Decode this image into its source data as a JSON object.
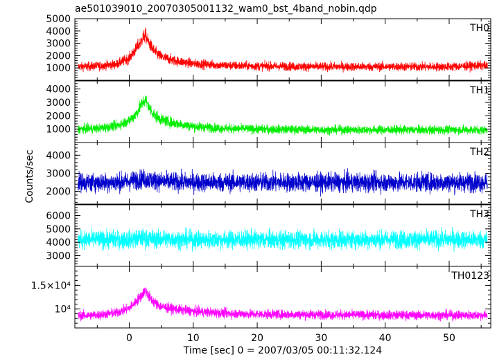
{
  "chart_data": {
    "type": "line",
    "title": "ae501039010_20070305001132_wam0_bst_4band_nobin.qdp",
    "xlabel": "Time [sec] 0 = 2007/03/05 00:11:32.124",
    "ylabel": "Counts/sec",
    "xlim": [
      -8.5,
      56.5
    ],
    "x_ticks": [
      0,
      10,
      20,
      30,
      40,
      50
    ],
    "x_tick_labels": [
      "0",
      "10",
      "20",
      "30",
      "40",
      "50"
    ],
    "grid": false,
    "panels": [
      {
        "name": "TH0",
        "color": "#ff0000",
        "ylim": [
          0,
          5000
        ],
        "y_ticks": [
          1000,
          2000,
          3000,
          4000,
          5000
        ],
        "y_tick_labels": [
          "1000",
          "2000",
          "3000",
          "4000",
          "5000"
        ],
        "points": [
          [
            -8,
            1100
          ],
          [
            -5,
            1150
          ],
          [
            -2,
            1300
          ],
          [
            0,
            1800
          ],
          [
            1,
            2500
          ],
          [
            2,
            3300
          ],
          [
            2.5,
            3700
          ],
          [
            3,
            3100
          ],
          [
            4,
            2300
          ],
          [
            5,
            1900
          ],
          [
            7,
            1600
          ],
          [
            10,
            1350
          ],
          [
            15,
            1200
          ],
          [
            20,
            1150
          ],
          [
            30,
            1100
          ],
          [
            40,
            1100
          ],
          [
            50,
            1100
          ],
          [
            55,
            1200
          ],
          [
            56,
            1150
          ]
        ]
      },
      {
        "name": "TH1",
        "color": "#00ee00",
        "ylim": [
          0,
          4600
        ],
        "y_ticks": [
          1000,
          2000,
          3000,
          4000
        ],
        "y_tick_labels": [
          "1000",
          "2000",
          "3000",
          "4000"
        ],
        "points": [
          [
            -8,
            1000
          ],
          [
            -5,
            1050
          ],
          [
            -2,
            1250
          ],
          [
            0,
            1650
          ],
          [
            1,
            2100
          ],
          [
            2,
            2900
          ],
          [
            2.5,
            3200
          ],
          [
            3,
            2700
          ],
          [
            4,
            2000
          ],
          [
            5,
            1700
          ],
          [
            7,
            1450
          ],
          [
            10,
            1200
          ],
          [
            15,
            1050
          ],
          [
            20,
            1000
          ],
          [
            30,
            950
          ],
          [
            40,
            950
          ],
          [
            50,
            950
          ],
          [
            56,
            950
          ]
        ]
      },
      {
        "name": "TH2",
        "color": "#0000cc",
        "ylim": [
          1300,
          4700
        ],
        "y_ticks": [
          2000,
          3000,
          4000
        ],
        "y_tick_labels": [
          "2000",
          "3000",
          "4000"
        ],
        "points": [
          [
            -8,
            2500
          ],
          [
            -2,
            2500
          ],
          [
            0,
            2550
          ],
          [
            2,
            2700
          ],
          [
            3,
            2650
          ],
          [
            5,
            2550
          ],
          [
            10,
            2500
          ],
          [
            20,
            2500
          ],
          [
            30,
            2500
          ],
          [
            40,
            2500
          ],
          [
            50,
            2500
          ],
          [
            56,
            2500
          ]
        ]
      },
      {
        "name": "TH3",
        "color": "#00ffff",
        "ylim": [
          2200,
          6800
        ],
        "y_ticks": [
          3000,
          4000,
          5000,
          6000
        ],
        "y_tick_labels": [
          "3000",
          "4000",
          "5000",
          "6000"
        ],
        "points": [
          [
            -8,
            4200
          ],
          [
            0,
            4200
          ],
          [
            2,
            4300
          ],
          [
            4,
            4250
          ],
          [
            10,
            4200
          ],
          [
            20,
            4200
          ],
          [
            30,
            4200
          ],
          [
            40,
            4200
          ],
          [
            50,
            4200
          ],
          [
            56,
            4200
          ]
        ]
      },
      {
        "name": "TH0123",
        "color": "#ff00ff",
        "ylim": [
          6000,
          19000
        ],
        "y_ticks": [
          10000,
          15000
        ],
        "y_tick_labels": [
          "10⁴",
          "1.5×10⁴"
        ],
        "points": [
          [
            -8,
            8600
          ],
          [
            -5,
            8700
          ],
          [
            -2,
            9200
          ],
          [
            0,
            10200
          ],
          [
            1,
            11500
          ],
          [
            2,
            13000
          ],
          [
            2.5,
            14000
          ],
          [
            3,
            12700
          ],
          [
            4,
            11300
          ],
          [
            5,
            10500
          ],
          [
            7,
            10000
          ],
          [
            10,
            9500
          ],
          [
            15,
            9100
          ],
          [
            20,
            8900
          ],
          [
            30,
            8800
          ],
          [
            40,
            8700
          ],
          [
            50,
            8700
          ],
          [
            56,
            8700
          ]
        ]
      }
    ]
  }
}
